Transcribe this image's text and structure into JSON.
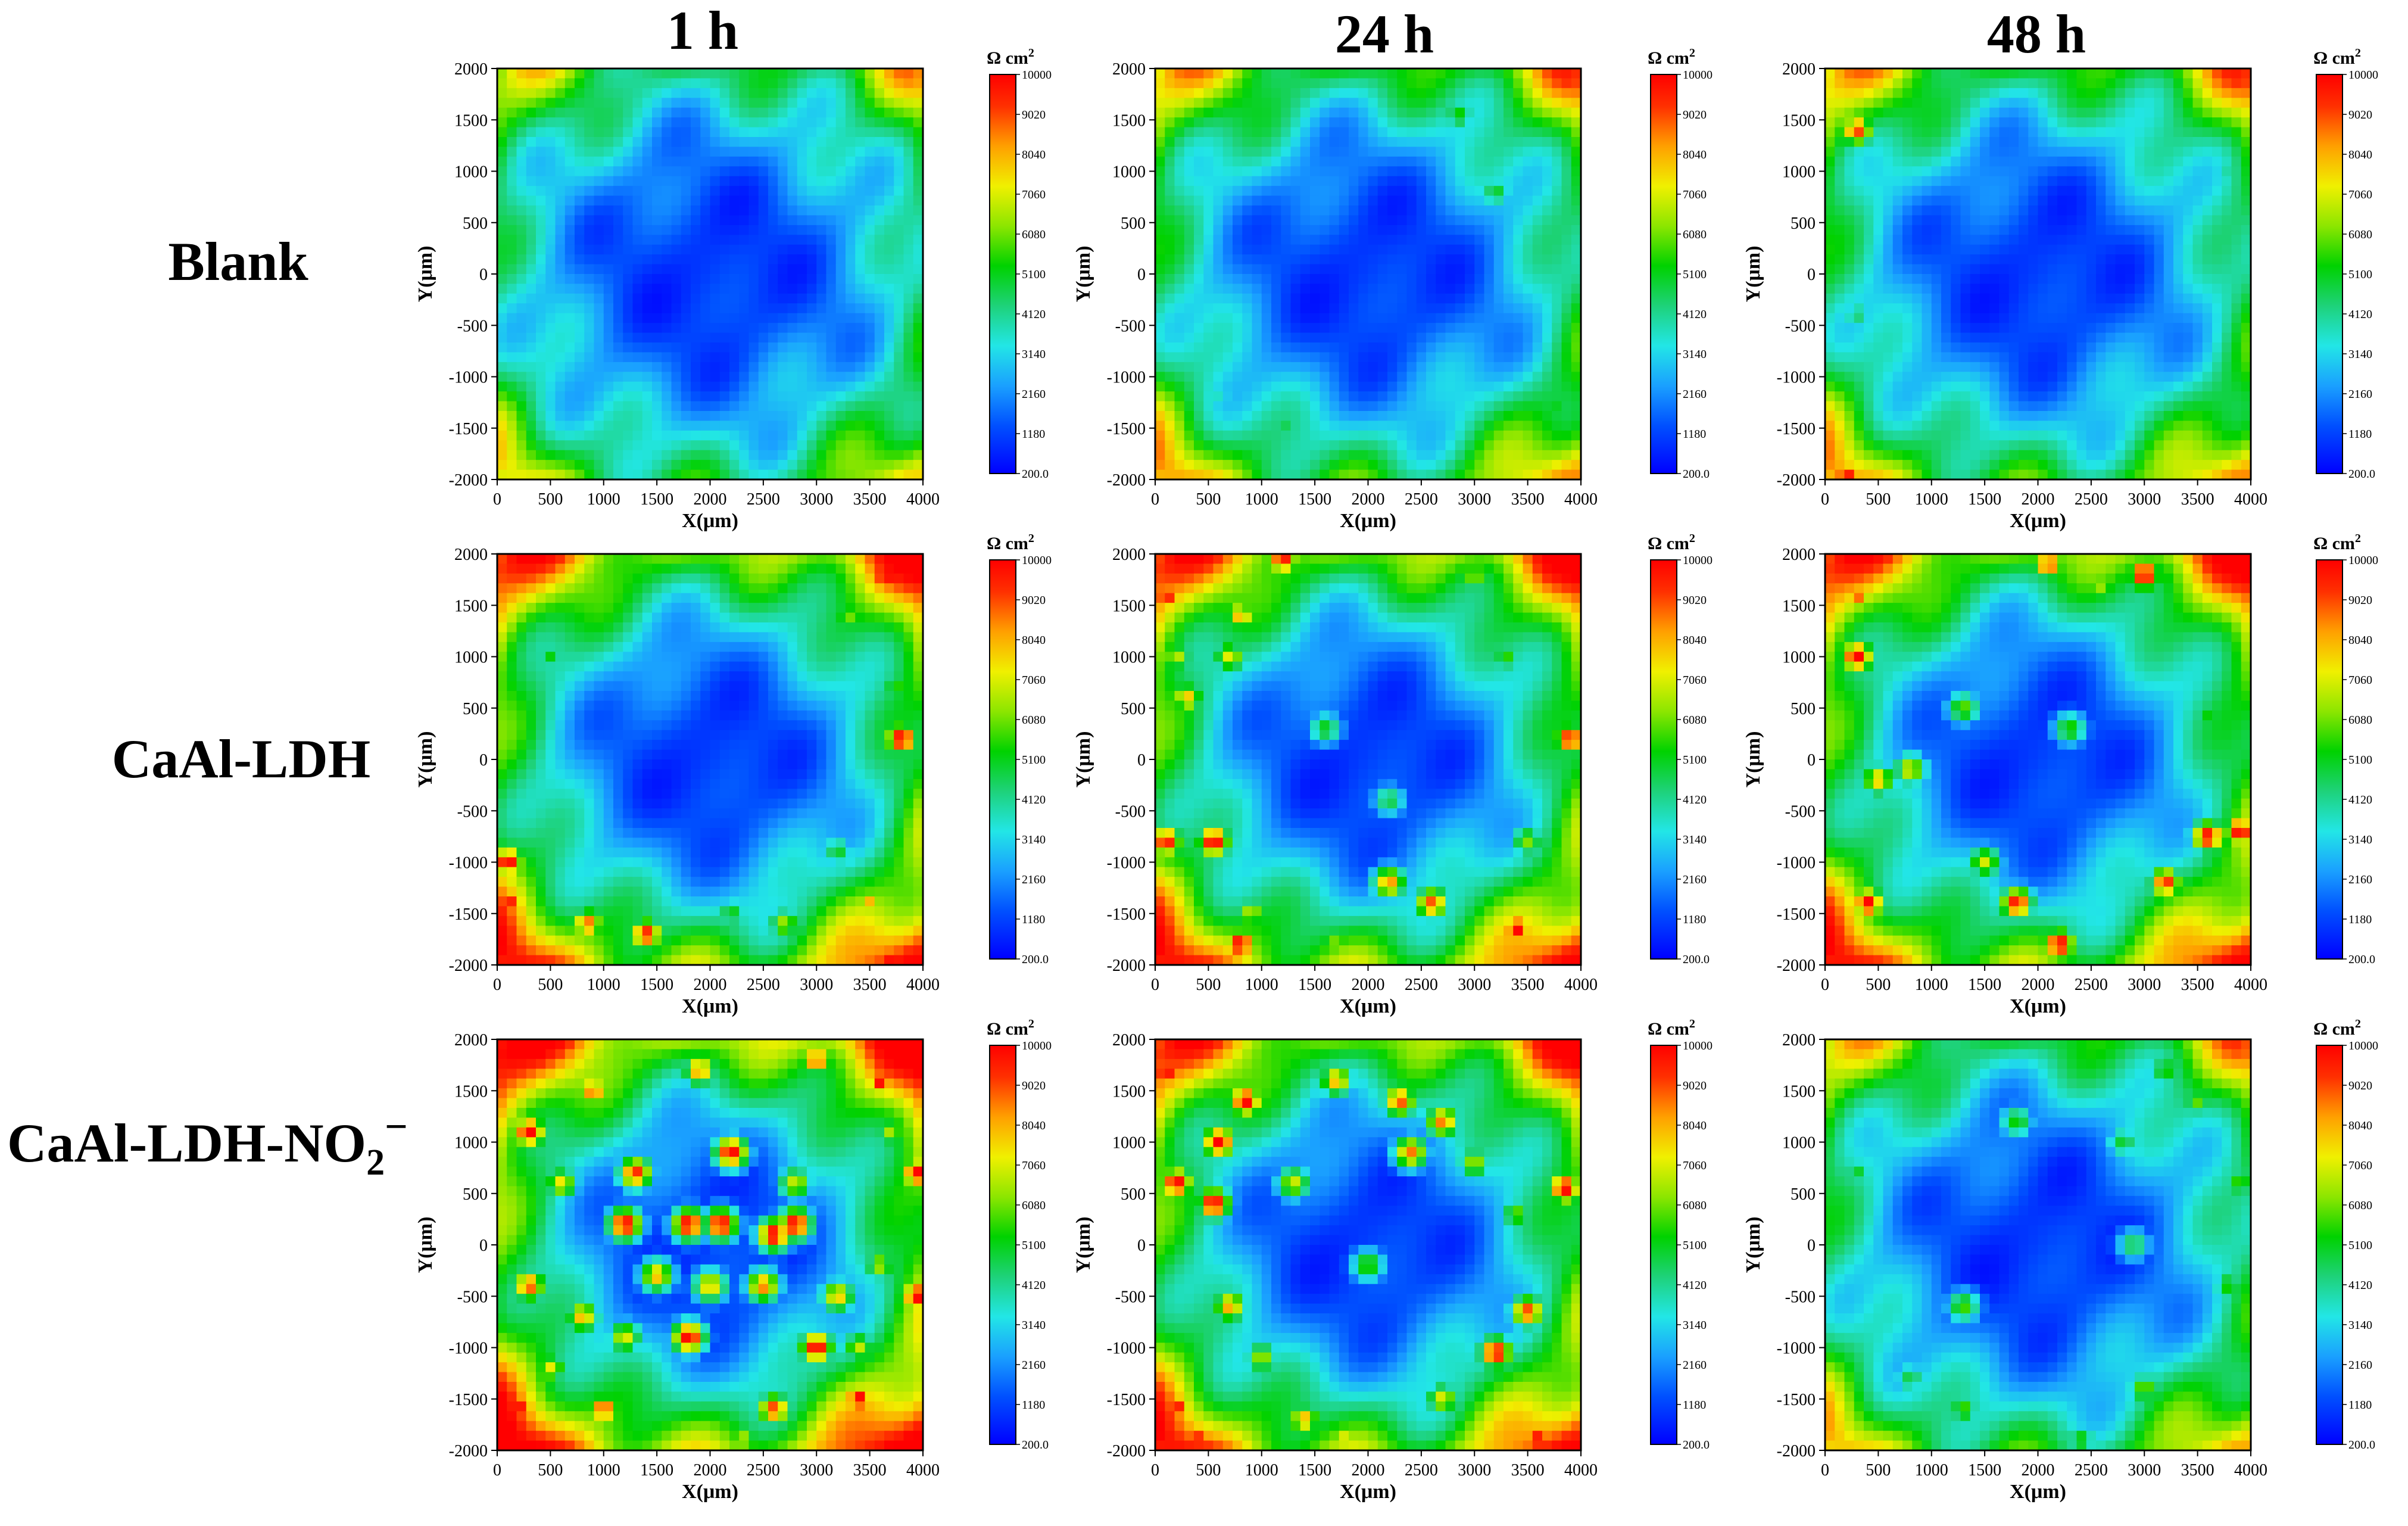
{
  "figure": {
    "time_labels": [
      "1 h",
      "24 h",
      "48 h"
    ],
    "row_labels": [
      "Blank",
      "CaAl-LDH",
      "CaAl-LDH-NO",
      "2",
      "−"
    ]
  },
  "chart_data": {
    "type": "heatmap",
    "description_axes": {
      "xlabel": "X(μm)",
      "ylabel": "Y(μm)",
      "xlim": [
        0,
        4000
      ],
      "ylim": [
        -2000,
        2000
      ],
      "x_ticks": [
        "0",
        "500",
        "1000",
        "1500",
        "2000",
        "2500",
        "3000",
        "3500",
        "4000"
      ],
      "y_ticks": [
        "2000",
        "1500",
        "1000",
        "500",
        "0",
        "-500",
        "-1000",
        "-1500",
        "-2000"
      ]
    },
    "colorbar": {
      "title": "Ω cm",
      "title_sup": "2",
      "range": [
        200,
        10000
      ],
      "ticks": [
        "10000",
        "9020",
        "8040",
        "7060",
        "6080",
        "5100",
        "4120",
        "3140",
        "2160",
        "1180",
        "200.0"
      ],
      "colors": [
        "#0000ff",
        "#0050ff",
        "#1aa0ff",
        "#22e6e6",
        "#1ed27a",
        "#00d200",
        "#8ce600",
        "#f0f000",
        "#ffa000",
        "#ff3000",
        "#ff0000"
      ]
    },
    "panels": [
      {
        "row": "Blank",
        "time": "1 h",
        "edge_level": 0.35,
        "spots": [
          [
            3800,
            1550,
            4600
          ],
          [
            200,
            1650,
            3800
          ],
          [
            2400,
            1600,
            3200
          ],
          [
            3700,
            -1400,
            3400
          ],
          [
            300,
            -1500,
            3000
          ],
          [
            3300,
            1100,
            3000
          ]
        ]
      },
      {
        "row": "Blank",
        "time": "24 h",
        "edge_level": 0.4,
        "spots": [
          [
            2850,
            1550,
            5200
          ],
          [
            3200,
            800,
            4800
          ],
          [
            3700,
            300,
            4200
          ],
          [
            3800,
            -1300,
            5000
          ],
          [
            3900,
            -1700,
            4600
          ],
          [
            200,
            1900,
            4400
          ],
          [
            1200,
            -1500,
            4600
          ],
          [
            600,
            -1200,
            3400
          ]
        ]
      },
      {
        "row": "Blank",
        "time": "48 h",
        "edge_level": 0.4,
        "spots": [
          [
            300,
            1400,
            9000
          ],
          [
            200,
            -1950,
            9600
          ],
          [
            3600,
            1800,
            4600
          ],
          [
            300,
            -400,
            4200
          ],
          [
            3800,
            1000,
            3800
          ],
          [
            3200,
            -1800,
            3800
          ],
          [
            1500,
            1850,
            3600
          ],
          [
            400,
            700,
            3000
          ]
        ]
      },
      {
        "row": "CaAl-LDH",
        "time": "1 h",
        "edge_level": 0.5,
        "spots": [
          [
            3650,
            1750,
            10000
          ],
          [
            3800,
            200,
            10000
          ],
          [
            100,
            -1000,
            10000
          ],
          [
            100,
            -1400,
            9800
          ],
          [
            3700,
            -1950,
            9800
          ],
          [
            1400,
            -1700,
            9400
          ],
          [
            850,
            -1600,
            8600
          ],
          [
            3500,
            -1400,
            7800
          ],
          [
            200,
            1800,
            7800
          ],
          [
            2700,
            -1600,
            6400
          ],
          [
            3300,
            1400,
            6000
          ],
          [
            3750,
            700,
            5400
          ],
          [
            500,
            1000,
            5000
          ],
          [
            1900,
            -1900,
            5600
          ],
          [
            2200,
            -1500,
            5000
          ],
          [
            3200,
            -900,
            4800
          ]
        ]
      },
      {
        "row": "CaAl-LDH",
        "time": "24 h",
        "edge_level": 0.5,
        "spots": [
          [
            800,
            -1800,
            10000
          ],
          [
            3400,
            -1650,
            10000
          ],
          [
            550,
            -800,
            10000
          ],
          [
            100,
            -800,
            9600
          ],
          [
            100,
            1600,
            9800
          ],
          [
            1200,
            1950,
            9600
          ],
          [
            3900,
            200,
            9600
          ],
          [
            2600,
            -1400,
            8800
          ],
          [
            2200,
            -1200,
            8200
          ],
          [
            800,
            1400,
            7800
          ],
          [
            300,
            600,
            7600
          ],
          [
            700,
            1000,
            7000
          ],
          [
            200,
            1000,
            6600
          ],
          [
            3000,
            1800,
            6400
          ],
          [
            3300,
            1000,
            5400
          ],
          [
            900,
            -1500,
            6600
          ],
          [
            1700,
            -1800,
            6200
          ],
          [
            3500,
            -800,
            6000
          ],
          [
            1600,
            300,
            5000
          ],
          [
            2200,
            -400,
            4600
          ]
        ]
      },
      {
        "row": "CaAl-LDH",
        "time": "48 h",
        "edge_level": 0.5,
        "spots": [
          [
            3000,
            1800,
            10000
          ],
          [
            300,
            1000,
            10000
          ],
          [
            400,
            -1400,
            10000
          ],
          [
            2200,
            -1800,
            10000
          ],
          [
            3900,
            -700,
            10000
          ],
          [
            3600,
            -750,
            9800
          ],
          [
            1800,
            -1400,
            9600
          ],
          [
            3200,
            -1200,
            9200
          ],
          [
            2100,
            1900,
            9000
          ],
          [
            300,
            1600,
            8800
          ],
          [
            500,
            -200,
            7600
          ],
          [
            800,
            -100,
            7000
          ],
          [
            1500,
            -1000,
            6800
          ],
          [
            2600,
            1700,
            6400
          ],
          [
            3500,
            -1900,
            6800
          ],
          [
            1300,
            500,
            5800
          ],
          [
            2300,
            300,
            5400
          ],
          [
            3600,
            400,
            5200
          ]
        ]
      },
      {
        "row": "CaAl-LDH-NO2−",
        "time": "1 h",
        "edge_level": 0.55,
        "spots": [
          [
            300,
            1100,
            10000
          ],
          [
            3600,
            1600,
            10000
          ],
          [
            3950,
            700,
            10000
          ],
          [
            2200,
            900,
            10000
          ],
          [
            1200,
            200,
            10000
          ],
          [
            1800,
            200,
            10000
          ],
          [
            2100,
            200,
            10000
          ],
          [
            2600,
            100,
            10000
          ],
          [
            2800,
            200,
            10000
          ],
          [
            3000,
            -1000,
            10000
          ],
          [
            3400,
            -1500,
            10000
          ],
          [
            1800,
            -900,
            10000
          ],
          [
            200,
            -1600,
            10000
          ],
          [
            3950,
            -500,
            10000
          ],
          [
            2600,
            -1600,
            9000
          ],
          [
            1000,
            -1600,
            9000
          ],
          [
            1300,
            700,
            9200
          ],
          [
            300,
            -400,
            8800
          ],
          [
            900,
            1500,
            8600
          ],
          [
            3000,
            1800,
            8800
          ],
          [
            1900,
            1700,
            8200
          ],
          [
            2500,
            -400,
            8400
          ],
          [
            800,
            -700,
            7800
          ],
          [
            1500,
            -300,
            7800
          ],
          [
            2000,
            -400,
            7600
          ],
          [
            3200,
            -500,
            7600
          ],
          [
            600,
            600,
            7200
          ],
          [
            2800,
            600,
            6800
          ],
          [
            1200,
            -900,
            7000
          ],
          [
            500,
            -1200,
            7000
          ],
          [
            3700,
            1100,
            6400
          ],
          [
            3400,
            -1000,
            6600
          ],
          [
            2300,
            -1900,
            6600
          ],
          [
            700,
            1800,
            6000
          ],
          [
            200,
            -1950,
            9600
          ],
          [
            3600,
            -200,
            6400
          ]
        ]
      },
      {
        "row": "CaAl-LDH-NO2−",
        "time": "24 h",
        "edge_level": 0.5,
        "spots": [
          [
            850,
            1400,
            10000
          ],
          [
            100,
            1650,
            10000
          ],
          [
            600,
            1000,
            10000
          ],
          [
            200,
            600,
            10000
          ],
          [
            550,
            400,
            10000
          ],
          [
            3950,
            1800,
            10000
          ],
          [
            3850,
            550,
            10000
          ],
          [
            3600,
            -1900,
            10000
          ],
          [
            3200,
            -1050,
            9800
          ],
          [
            200,
            -1600,
            9800
          ],
          [
            400,
            -1900,
            9600
          ],
          [
            3500,
            -650,
            9000
          ],
          [
            2300,
            1400,
            8800
          ],
          [
            2700,
            1200,
            8400
          ],
          [
            2400,
            900,
            8400
          ],
          [
            1700,
            1600,
            7800
          ],
          [
            1300,
            600,
            6800
          ],
          [
            700,
            -600,
            8000
          ],
          [
            1400,
            -1700,
            7800
          ],
          [
            1800,
            -1900,
            7400
          ],
          [
            2700,
            -1500,
            7000
          ],
          [
            3000,
            800,
            6400
          ],
          [
            1000,
            -1100,
            6400
          ],
          [
            2000,
            -200,
            5600
          ],
          [
            3400,
            300,
            5800
          ],
          [
            200,
            -1300,
            6600
          ]
        ]
      },
      {
        "row": "CaAl-LDH-NO2−",
        "time": "48 h",
        "edge_level": 0.38,
        "spots": [
          [
            500,
            1800,
            5600
          ],
          [
            3200,
            1700,
            5400
          ],
          [
            3500,
            1400,
            5800
          ],
          [
            3900,
            600,
            5600
          ],
          [
            3800,
            -400,
            5400
          ],
          [
            1800,
            1200,
            5200
          ],
          [
            1300,
            -600,
            5600
          ],
          [
            3000,
            -1400,
            6000
          ],
          [
            3400,
            -1800,
            5800
          ],
          [
            1300,
            -1600,
            5600
          ],
          [
            1900,
            -1900,
            5000
          ],
          [
            2400,
            -1900,
            5200
          ],
          [
            3750,
            -1900,
            5600
          ],
          [
            2800,
            1000,
            4800
          ],
          [
            300,
            700,
            4800
          ],
          [
            3950,
            1900,
            5200
          ],
          [
            2900,
            0,
            4600
          ],
          [
            200,
            -1900,
            5800
          ],
          [
            800,
            -1300,
            4600
          ]
        ]
      }
    ]
  }
}
